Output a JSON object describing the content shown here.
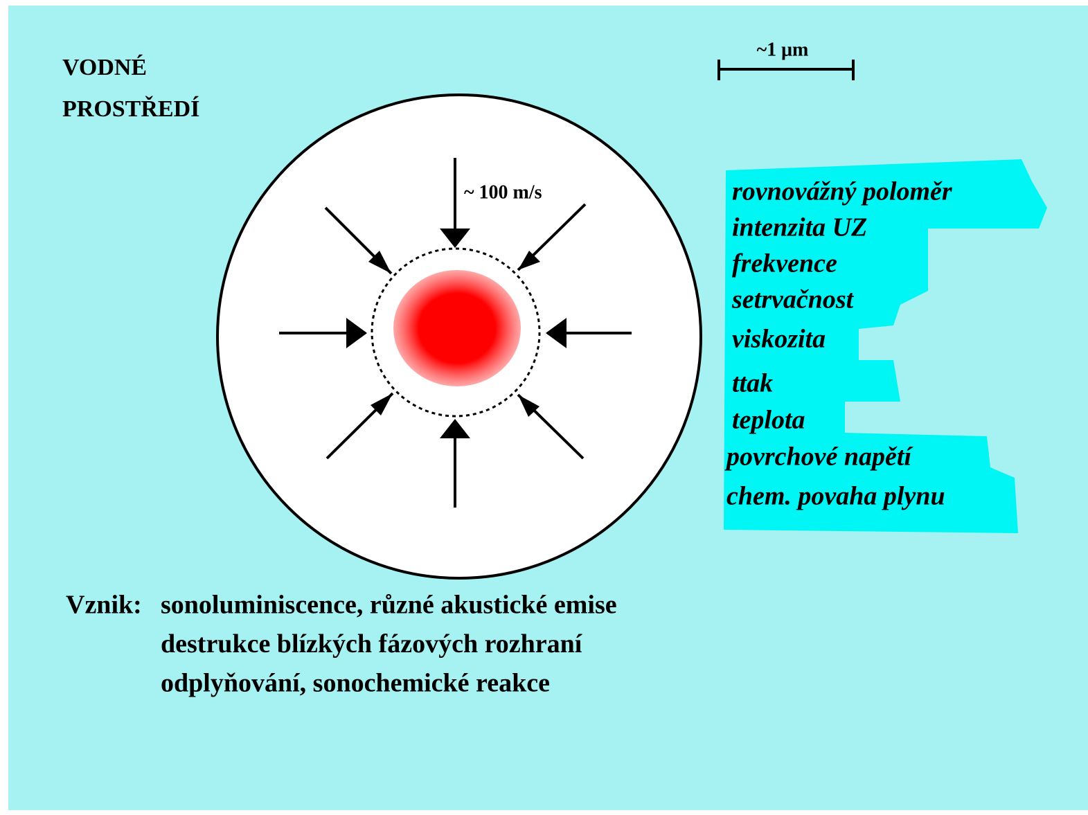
{
  "environment_label": [
    "VODNÉ",
    "PROSTŘEDÍ"
  ],
  "scale_bar": {
    "label": "~1 μm"
  },
  "arrow_label": "~ 100 m/s",
  "factors": [
    "rovnovážný poloměr",
    "intenzita UZ",
    "frekvence",
    "setrvačnost",
    "viskozita",
    "ttak",
    "teplota",
    "povrchové napětí",
    "chem. povaha plynu"
  ],
  "consequences": {
    "label": "Vznik:",
    "items": [
      "sonoluminiscence, různé akustické emise",
      "destrukce blízkých fázových rozhraní",
      "odplyňování, sonochemické reakce"
    ]
  }
}
